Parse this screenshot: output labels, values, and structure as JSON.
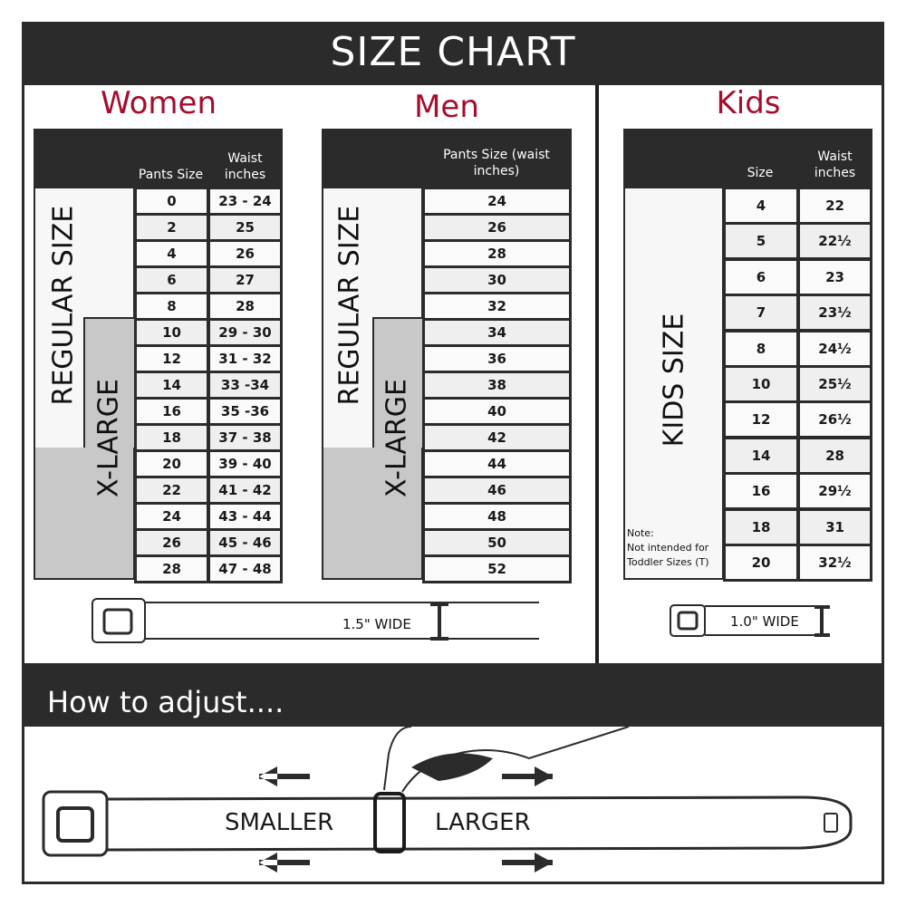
{
  "header": {
    "title": "SIZE CHART"
  },
  "women": {
    "title": "Women",
    "headers": [
      "Pants Size",
      "Waist inches"
    ],
    "regular_label": "REGULAR SIZE",
    "xlarge_label": "X-LARGE",
    "rows": [
      [
        "0",
        "23 - 24"
      ],
      [
        "2",
        "25"
      ],
      [
        "4",
        "26"
      ],
      [
        "6",
        "27"
      ],
      [
        "8",
        "28"
      ],
      [
        "10",
        "29 - 30"
      ],
      [
        "12",
        "31 - 32"
      ],
      [
        "14",
        "33 -34"
      ],
      [
        "16",
        "35 -36"
      ],
      [
        "18",
        "37 - 38"
      ],
      [
        "20",
        "39 - 40"
      ],
      [
        "22",
        "41 - 42"
      ],
      [
        "24",
        "43 - 44"
      ],
      [
        "26",
        "45 - 46"
      ],
      [
        "28",
        "47 - 48"
      ]
    ],
    "belt_width": "1.5\" WIDE"
  },
  "men": {
    "title": "Men",
    "headers": [
      "Pants Size (waist inches)"
    ],
    "regular_label": "REGULAR SIZE",
    "xlarge_label": "X-LARGE",
    "rows": [
      "24",
      "26",
      "28",
      "30",
      "32",
      "34",
      "36",
      "38",
      "40",
      "42",
      "44",
      "46",
      "48",
      "50",
      "52"
    ]
  },
  "kids": {
    "title": "Kids",
    "headers": [
      "Size",
      "Waist inches"
    ],
    "label": "KIDS SIZE",
    "note": [
      "Note:",
      "Not intended for",
      "Toddler Sizes (T)"
    ],
    "rows": [
      [
        "4",
        "22"
      ],
      [
        "5",
        "22½"
      ],
      [
        "6",
        "23"
      ],
      [
        "7",
        "23½"
      ],
      [
        "8",
        "24½"
      ],
      [
        "10",
        "25½"
      ],
      [
        "12",
        "26½"
      ],
      [
        "14",
        "28"
      ],
      [
        "16",
        "29½"
      ],
      [
        "18",
        "31"
      ],
      [
        "20",
        "32½"
      ]
    ],
    "belt_width": "1.0\" WIDE"
  },
  "adjust": {
    "title": "How to adjust....",
    "smaller": "SMALLER",
    "larger": "LARGER"
  },
  "colors": {
    "dark": "#2b2b2b",
    "accent": "#a50d2d",
    "xlarge_fill": "#c8c8c8",
    "row_alt": "#efefef"
  }
}
